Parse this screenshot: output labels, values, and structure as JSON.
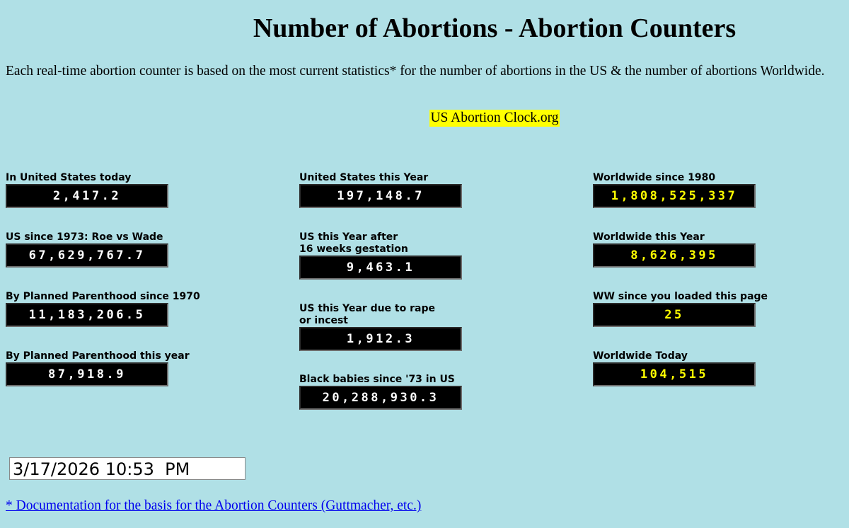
{
  "header": {
    "title": "Number of Abortions - Abortion Counters",
    "intro": "Each real-time abortion counter is based on the most current statistics* for the number of abortions in the US & the number of abortions Worldwide.",
    "site_link": "US Abortion Clock.org"
  },
  "columns": {
    "us": [
      {
        "label": "In United States today",
        "value": "2,417.2"
      },
      {
        "label": "US since 1973: Roe vs Wade",
        "value": "67,629,767.7"
      },
      {
        "label": "By Planned Parenthood since 1970",
        "value": "11,183,206.5"
      },
      {
        "label": "By Planned Parenthood this year",
        "value": "87,918.9"
      }
    ],
    "year": [
      {
        "label": "United States this Year",
        "value": "197,148.7"
      },
      {
        "label_line1": "US this Year after",
        "label_line2": "16 weeks gestation",
        "value": "9,463.1"
      },
      {
        "label_line1": "US this Year due to rape",
        "label_line2": "or incest",
        "value": "1,912.3"
      },
      {
        "label": "Black babies since '73 in US",
        "value": "20,288,930.3"
      }
    ],
    "world": [
      {
        "label": "Worldwide since 1980",
        "value": "1,808,525,337"
      },
      {
        "label": "Worldwide this Year",
        "value": "8,626,395"
      },
      {
        "label": "WW since you loaded this page",
        "value": "25"
      },
      {
        "label": "Worldwide Today",
        "value": "104,515"
      }
    ]
  },
  "footer": {
    "datetime": "3/17/2026 10:53  PM",
    "doc_link": "* Documentation for the basis for the Abortion Counters (Guttmacher, etc.)"
  },
  "colors": {
    "background": "#b0e0e6",
    "counter_bg": "#000000",
    "us_counter_text": "#ffffff",
    "ww_counter_text": "#ffff00",
    "site_link_highlight": "#ffff00",
    "link": "#0000ee"
  }
}
